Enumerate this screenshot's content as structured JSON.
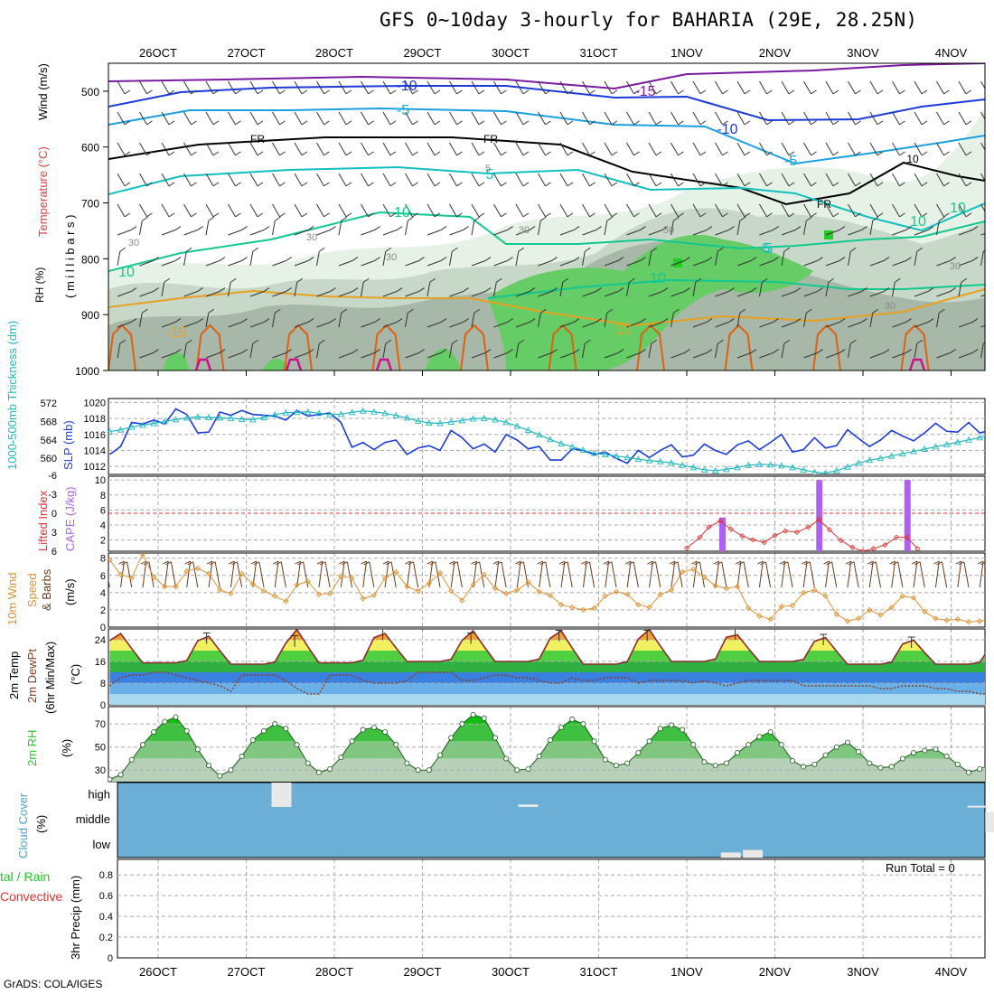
{
  "title": "GFS 0~10day 3-hourly for BAHARIA (29E, 28.25N)",
  "credit": "GrADS: COLA/IGES",
  "dates": [
    "26OCT",
    "27OCT",
    "28OCT",
    "29OCT",
    "30OCT",
    "31OCT",
    "1NOV",
    "2NOV",
    "3NOV",
    "4NOV"
  ],
  "colors": {
    "rh_light": "#e6f2e6",
    "rh_mid": "#c8d8c8",
    "rh_dark": "#a8b8a8",
    "rh_green": "#66cc66",
    "rh_bright": "#22cc22",
    "t_purple": "#7a1aa0",
    "t_blue": "#1a3adc",
    "t_lightblue": "#1aa0e0",
    "t_freeze": "#000000",
    "t_cyan": "#10c0c0",
    "t_teal": "#10c890",
    "t_orange": "#e8a020",
    "t_darkorange": "#e06010",
    "t_magenta": "#d0108a",
    "slp": "#1a3adc",
    "thickness": "#20b8c0",
    "lifted_index": "#e03030",
    "cape": "#b060f0",
    "wind_speed": "#e09030",
    "barb": "#6a3a1a",
    "cloud_bg": "#6baed6",
    "cloud_fill": "#e8e8e8",
    "rh2m": "#20c820"
  },
  "panels": {
    "upper": {
      "labels": [
        "RH (%)",
        "Temperature (°C)",
        "Wind (m/s)",
        "( m i l l i b a r s )"
      ],
      "yticks": [
        "500",
        "600",
        "700",
        "800",
        "900",
        "1000"
      ],
      "contour_labels": [
        "-10",
        "-15",
        "-5",
        "-10",
        "-5",
        "FR",
        "FR",
        "FR",
        "5",
        "5",
        "10",
        "10",
        "10",
        "-5",
        "5",
        "10",
        "-15",
        "10",
        "10",
        "10",
        "30",
        "30",
        "30",
        "30",
        "50",
        "30",
        "30"
      ]
    },
    "slp": {
      "label_thick": "1000-500mb Thickness (dm)",
      "label_slp": "SLP (mb)",
      "left_ticks": [
        "572",
        "568",
        "564",
        "560"
      ],
      "right_ticks": [
        "1020",
        "1018",
        "1016",
        "1014",
        "1012"
      ]
    },
    "cape": {
      "label_li": "Lifted Index",
      "label_cape": "CAPE (J/kg)",
      "left_ticks": [
        "-6",
        "-3",
        "0",
        "3",
        "6"
      ],
      "right_ticks": [
        "10",
        "8",
        "6",
        "4",
        "2"
      ]
    },
    "wind10": {
      "label1": "10m Wind",
      "label2": "Speed",
      "label3": "& Barbs",
      "label4": "(m/s)",
      "yticks": [
        "8",
        "6",
        "4",
        "2",
        "0"
      ]
    },
    "temp2m": {
      "label1": "2m Temp",
      "label2": "2m DewPt",
      "label3": "(6hr Min/Max)",
      "label4": "(°C)",
      "yticks": [
        "24",
        "16",
        "8",
        "0"
      ]
    },
    "rh2m": {
      "label1": "2m RH",
      "label2": "(%)",
      "yticks": [
        "70",
        "50",
        "30"
      ]
    },
    "cloud": {
      "label1": "Cloud Cover",
      "label2": "(%)",
      "levels": [
        "high",
        "middle",
        "low"
      ]
    },
    "precip": {
      "label1": "tal / Rain",
      "label2": "Convective",
      "label3": "3hr Precip (mm)",
      "yticks": [
        "0.8",
        "0.6",
        "0.4",
        "0.2",
        "0"
      ],
      "run_total": "Run Total = 0"
    }
  },
  "chart_data": [
    {
      "type": "line",
      "name": "SLP / thickness",
      "ylabel": "SLP (mb)",
      "ylim": [
        1011,
        1020.5
      ],
      "series": [
        {
          "name": "SLP (mb)",
          "values": [
            1013.5,
            1014.5,
            1017.5,
            1017.3,
            1017.8,
            1017.3,
            1019.2,
            1018.5,
            1016.2,
            1016.3,
            1018.8,
            1018.4,
            1019.0,
            1018.5,
            1018.4,
            1018.3,
            1017.8,
            1019.0,
            1018.3,
            1018.5,
            1018.7,
            1017.5,
            1014.4,
            1015.0,
            1014.1,
            1015.0,
            1015.3,
            1013.5,
            1014.3,
            1014.6,
            1014.0,
            1016.5,
            1015.6,
            1014.2,
            1014.8,
            1013.8,
            1016.0,
            1015.3,
            1014.2,
            1014.5,
            1012.8,
            1012.8,
            1014.2,
            1014.0,
            1013.5,
            1013.8,
            1013.0,
            1012.4,
            1014.0,
            1013.1,
            1014.0,
            1014.7,
            1013.2,
            1013.4,
            1014.8,
            1014.0,
            1013.5,
            1014.7,
            1015.2,
            1014.1,
            1015.0,
            1016.0,
            1013.8,
            1014.1,
            1015.6,
            1014.3,
            1014.6,
            1016.6,
            1015.5,
            1014.5,
            1015.3,
            1016.5,
            1015.8,
            1015.2,
            1016.2,
            1017.4,
            1016.4,
            1016.3,
            1017.5,
            1016.2,
            1016.5,
            1017.8,
            1017.0,
            1017.3,
            1018.3
          ]
        },
        {
          "name": "1000-500mb Thickness (dm)",
          "values": [
            565.8,
            566.2,
            566.8,
            567.2,
            567.6,
            568.0,
            568.4,
            568.8,
            569.0,
            568.9,
            568.8,
            568.7,
            568.5,
            568.4,
            568.9,
            569.5,
            569.9,
            570.0,
            570.1,
            569.8,
            569.5,
            569.6,
            570.0,
            570.3,
            570.1,
            569.8,
            569.3,
            568.8,
            568.1,
            567.7,
            567.6,
            567.9,
            568.2,
            568.6,
            568.7,
            568.4,
            567.8,
            567.0,
            566.1,
            565.1,
            564.1,
            563.2,
            562.5,
            561.8,
            561.1,
            560.8,
            560.5,
            560.2,
            559.8,
            559.5,
            559.3,
            559.0,
            558.5,
            558.0,
            557.5,
            557.3,
            557.6,
            558.0,
            558.5,
            558.7,
            558.6,
            558.4,
            558.0,
            557.5,
            557.0,
            556.8,
            557.3,
            558.1,
            559.0,
            559.6,
            560.0,
            560.5,
            561.0,
            561.5,
            562.0,
            562.5,
            563.0,
            563.5,
            564.0,
            564.5,
            564.9,
            565.2,
            565.5,
            565.8,
            566.0
          ]
        }
      ]
    },
    {
      "type": "bar",
      "name": "CAPE / Lifted Index",
      "ylabel": "CAPE (J/kg)",
      "ylim": [
        0,
        10
      ],
      "bars": [
        {
          "t": 6.4,
          "value": 5
        },
        {
          "t": 7.5,
          "value": 10
        },
        {
          "t": 8.5,
          "value": 10
        }
      ],
      "series": [
        {
          "name": "Lifted Index",
          "values": [
            [
              6.0,
              5.5
            ],
            [
              6.15,
              3.8
            ],
            [
              6.25,
              2.2
            ],
            [
              6.38,
              1.2
            ],
            [
              6.5,
              2.5
            ],
            [
              6.63,
              3.6
            ],
            [
              6.75,
              4.2
            ],
            [
              6.88,
              4.6
            ],
            [
              7.0,
              3.5
            ],
            [
              7.12,
              2.8
            ],
            [
              7.25,
              3.0
            ],
            [
              7.38,
              2.2
            ],
            [
              7.5,
              1.0
            ],
            [
              7.62,
              2.6
            ],
            [
              7.75,
              4.3
            ],
            [
              7.88,
              5.4
            ],
            [
              8.0,
              6.0
            ],
            [
              8.12,
              5.6
            ],
            [
              8.25,
              5.0
            ],
            [
              8.38,
              3.8
            ],
            [
              8.5,
              3.8
            ],
            [
              8.62,
              5.6
            ]
          ]
        }
      ]
    },
    {
      "type": "line",
      "name": "10m Wind Speed",
      "ylabel": "Speed (m/s)",
      "ylim": [
        0,
        8.6
      ],
      "series": [
        {
          "name": "Speed",
          "values": [
            7.8,
            6.1,
            5.7,
            8.5,
            5.8,
            4.7,
            4.7,
            6.5,
            6.8,
            6.2,
            4.3,
            3.9,
            6.2,
            5.0,
            4.2,
            3.6,
            3.0,
            4.9,
            5.3,
            3.8,
            3.9,
            5.9,
            5.7,
            3.3,
            3.7,
            5.7,
            6.4,
            4.7,
            4.2,
            5.1,
            6.3,
            4.2,
            3.1,
            4.9,
            6.1,
            4.5,
            3.9,
            4.3,
            5.2,
            4.1,
            3.7,
            2.6,
            2.3,
            2.0,
            2.2,
            3.6,
            4.1,
            3.8,
            2.6,
            2.3,
            3.8,
            4.3,
            6.4,
            6.7,
            5.8,
            4.8,
            4.5,
            4.7,
            2.2,
            1.3,
            0.9,
            2.4,
            2.5,
            4.0,
            4.3,
            3.6,
            1.5,
            0.7,
            1.0,
            2.0,
            1.4,
            2.3,
            3.6,
            3.4,
            1.8,
            1.0,
            0.8,
            0.9,
            0.6,
            0.7,
            0.9,
            1.4,
            1.5,
            0.6,
            2.0
          ]
        }
      ]
    },
    {
      "type": "area",
      "name": "2m Temperature",
      "ylabel": "(°C)",
      "ylim": [
        0,
        28
      ],
      "series": [
        {
          "name": "2m Temp max",
          "values": [
            26.5,
            25.5,
            28.0,
            26.5,
            27.5,
            27.5,
            28.0,
            26.0,
            25.0,
            24.0
          ]
        },
        {
          "name": "2m Temp min",
          "values": [
            15.5,
            15.0,
            15.5,
            16.0,
            16.0,
            15.0,
            16.0,
            16.0,
            15.0,
            15.0
          ]
        },
        {
          "name": "2m DewPt",
          "values": [
            7,
            10,
            11,
            11,
            12,
            12,
            11,
            10,
            9,
            8,
            7,
            5,
            11,
            11,
            11,
            11,
            9,
            6,
            4,
            4,
            11,
            11,
            11,
            9,
            8,
            8,
            8,
            9,
            12,
            12,
            12,
            12,
            9,
            9,
            10,
            11,
            11,
            10,
            10,
            9,
            8,
            8,
            10,
            9,
            9,
            10,
            10,
            10,
            8,
            9,
            9,
            9,
            9,
            8,
            9,
            8,
            7,
            8,
            9,
            9,
            9,
            9,
            9,
            7,
            7,
            7,
            7,
            7,
            7,
            7,
            6,
            6,
            7,
            7,
            7,
            6,
            6,
            5,
            5,
            4,
            4,
            4,
            4,
            4,
            4
          ]
        }
      ]
    },
    {
      "type": "area",
      "name": "2m RH",
      "ylabel": "(%)",
      "ylim": [
        20,
        85
      ],
      "series": [
        {
          "name": "2m RH",
          "values": [
            22,
            26,
            39,
            52,
            63,
            72,
            76,
            64,
            48,
            34,
            25,
            30,
            42,
            56,
            64,
            70,
            66,
            52,
            36,
            28,
            31,
            41,
            55,
            65,
            67,
            63,
            52,
            36,
            30,
            30,
            43,
            58,
            70,
            78,
            75,
            58,
            40,
            30,
            31,
            42,
            56,
            67,
            74,
            70,
            55,
            39,
            34,
            36,
            45,
            55,
            66,
            69,
            65,
            52,
            37,
            34,
            36,
            45,
            52,
            59,
            63,
            52,
            38,
            33,
            35,
            43,
            50,
            54,
            46,
            36,
            32,
            33,
            40,
            45,
            47,
            48,
            42,
            35,
            28,
            31,
            35,
            37,
            40,
            39,
            34
          ]
        }
      ]
    },
    {
      "type": "bar",
      "name": "Cloud Cover",
      "ylabel": "(%)",
      "categories": [
        "high",
        "middle",
        "low"
      ],
      "series": [
        {
          "name": "high",
          "values": [
            [
              1.4,
              100
            ],
            [
              4.2,
              10
            ],
            [
              9.3,
              5
            ]
          ]
        },
        {
          "name": "middle",
          "values": [
            [
              9.5,
              80
            ]
          ]
        },
        {
          "name": "low",
          "values": [
            [
              6.5,
              20
            ],
            [
              6.75,
              30
            ]
          ]
        }
      ]
    },
    {
      "type": "bar",
      "name": "3hr Precip",
      "ylabel": "3hr Precip (mm)",
      "ylim": [
        0,
        0.95
      ],
      "values": []
    }
  ]
}
